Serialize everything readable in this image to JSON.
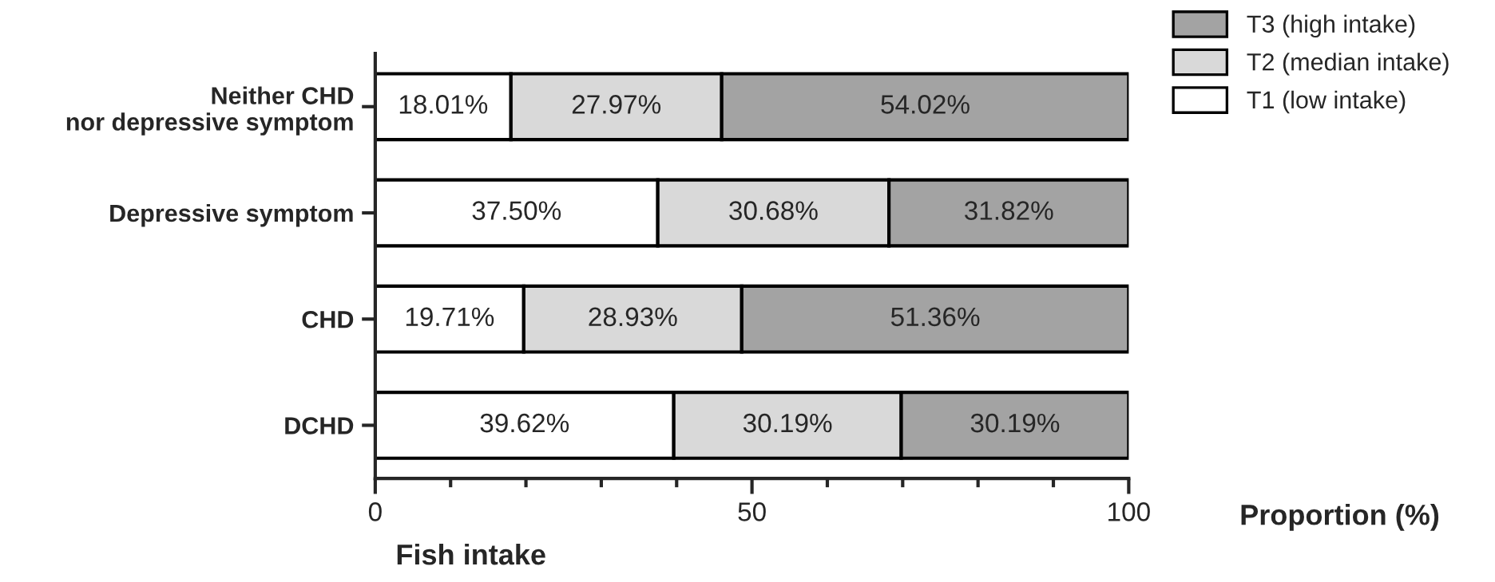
{
  "chart_data": {
    "type": "bar",
    "orientation": "horizontal",
    "stacked": true,
    "categories": [
      "Neither CHD\nnor depressive symptom",
      "Depressive symptom",
      "CHD",
      "DCHD"
    ],
    "series": [
      {
        "name": "T1 (low intake)",
        "color": "#ffffff",
        "values": [
          18.01,
          37.5,
          19.71,
          39.62
        ],
        "value_labels": [
          "18.01%",
          "37.50%",
          "19.71%",
          "39.62%"
        ]
      },
      {
        "name": "T2 (median intake)",
        "color": "#d9d9d9",
        "values": [
          27.97,
          30.68,
          28.93,
          30.19
        ],
        "value_labels": [
          "27.97%",
          "30.68%",
          "28.93%",
          "30.19%"
        ]
      },
      {
        "name": "T3 (high intake)",
        "color": "#a3a3a3",
        "values": [
          54.02,
          31.82,
          51.36,
          30.19
        ],
        "value_labels": [
          "54.02%",
          "31.82%",
          "51.36%",
          "30.19%"
        ]
      }
    ],
    "xlim": [
      0,
      100
    ],
    "xticks": [
      0,
      {
        "value": 10,
        "label": null
      },
      {
        "value": 20,
        "label": null
      },
      {
        "value": 30,
        "label": null
      },
      {
        "value": 40,
        "label": null
      },
      50,
      {
        "value": 60,
        "label": null
      },
      {
        "value": 70,
        "label": null
      },
      {
        "value": 80,
        "label": null
      },
      {
        "value": 90,
        "label": null
      },
      100
    ],
    "xlabel": "Proportion (%)",
    "annotations": [
      "Fish intake"
    ],
    "legend": "top right",
    "grid": false
  }
}
